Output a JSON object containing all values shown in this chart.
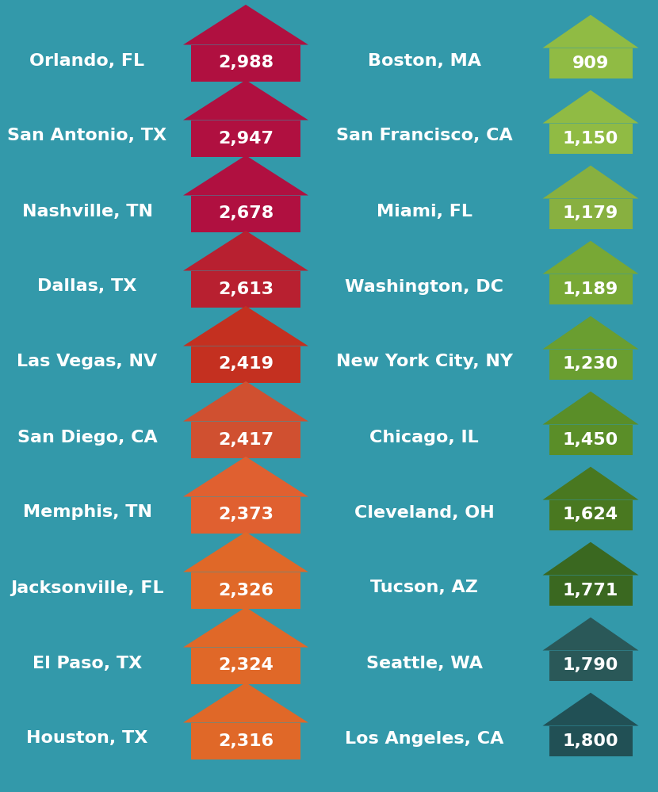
{
  "background_color": "#3399aa",
  "left_cities": [
    "Orlando, FL",
    "San Antonio, TX",
    "Nashville, TN",
    "Dallas, TX",
    "Las Vegas, NV",
    "San Diego, CA",
    "Memphis, TN",
    "Jacksonville, FL",
    "El Paso, TX",
    "Houston, TX"
  ],
  "left_values": [
    "2,988",
    "2,947",
    "2,678",
    "2,613",
    "2,419",
    "2,417",
    "2,373",
    "2,326",
    "2,324",
    "2,316"
  ],
  "left_colors": [
    "#b01040",
    "#b01040",
    "#b01040",
    "#b82030",
    "#c43020",
    "#d05030",
    "#e06030",
    "#e06828",
    "#e06828",
    "#e06828"
  ],
  "right_cities": [
    "Boston, MA",
    "San Francisco, CA",
    "Miami, FL",
    "Washington, DC",
    "New York City, NY",
    "Chicago, IL",
    "Cleveland, OH",
    "Tucson, AZ",
    "Seattle, WA",
    "Los Angeles, CA"
  ],
  "right_values": [
    "909",
    "1,150",
    "1,179",
    "1,189",
    "1,230",
    "1,450",
    "1,624",
    "1,771",
    "1,790",
    "1,800"
  ],
  "right_colors": [
    "#90bb44",
    "#90bb44",
    "#88b040",
    "#78a835",
    "#6a9e30",
    "#5a8e28",
    "#497820",
    "#3a6820",
    "#2a5858",
    "#215055"
  ],
  "text_color": "#ffffff",
  "city_fontsize": 16,
  "value_fontsize": 16
}
